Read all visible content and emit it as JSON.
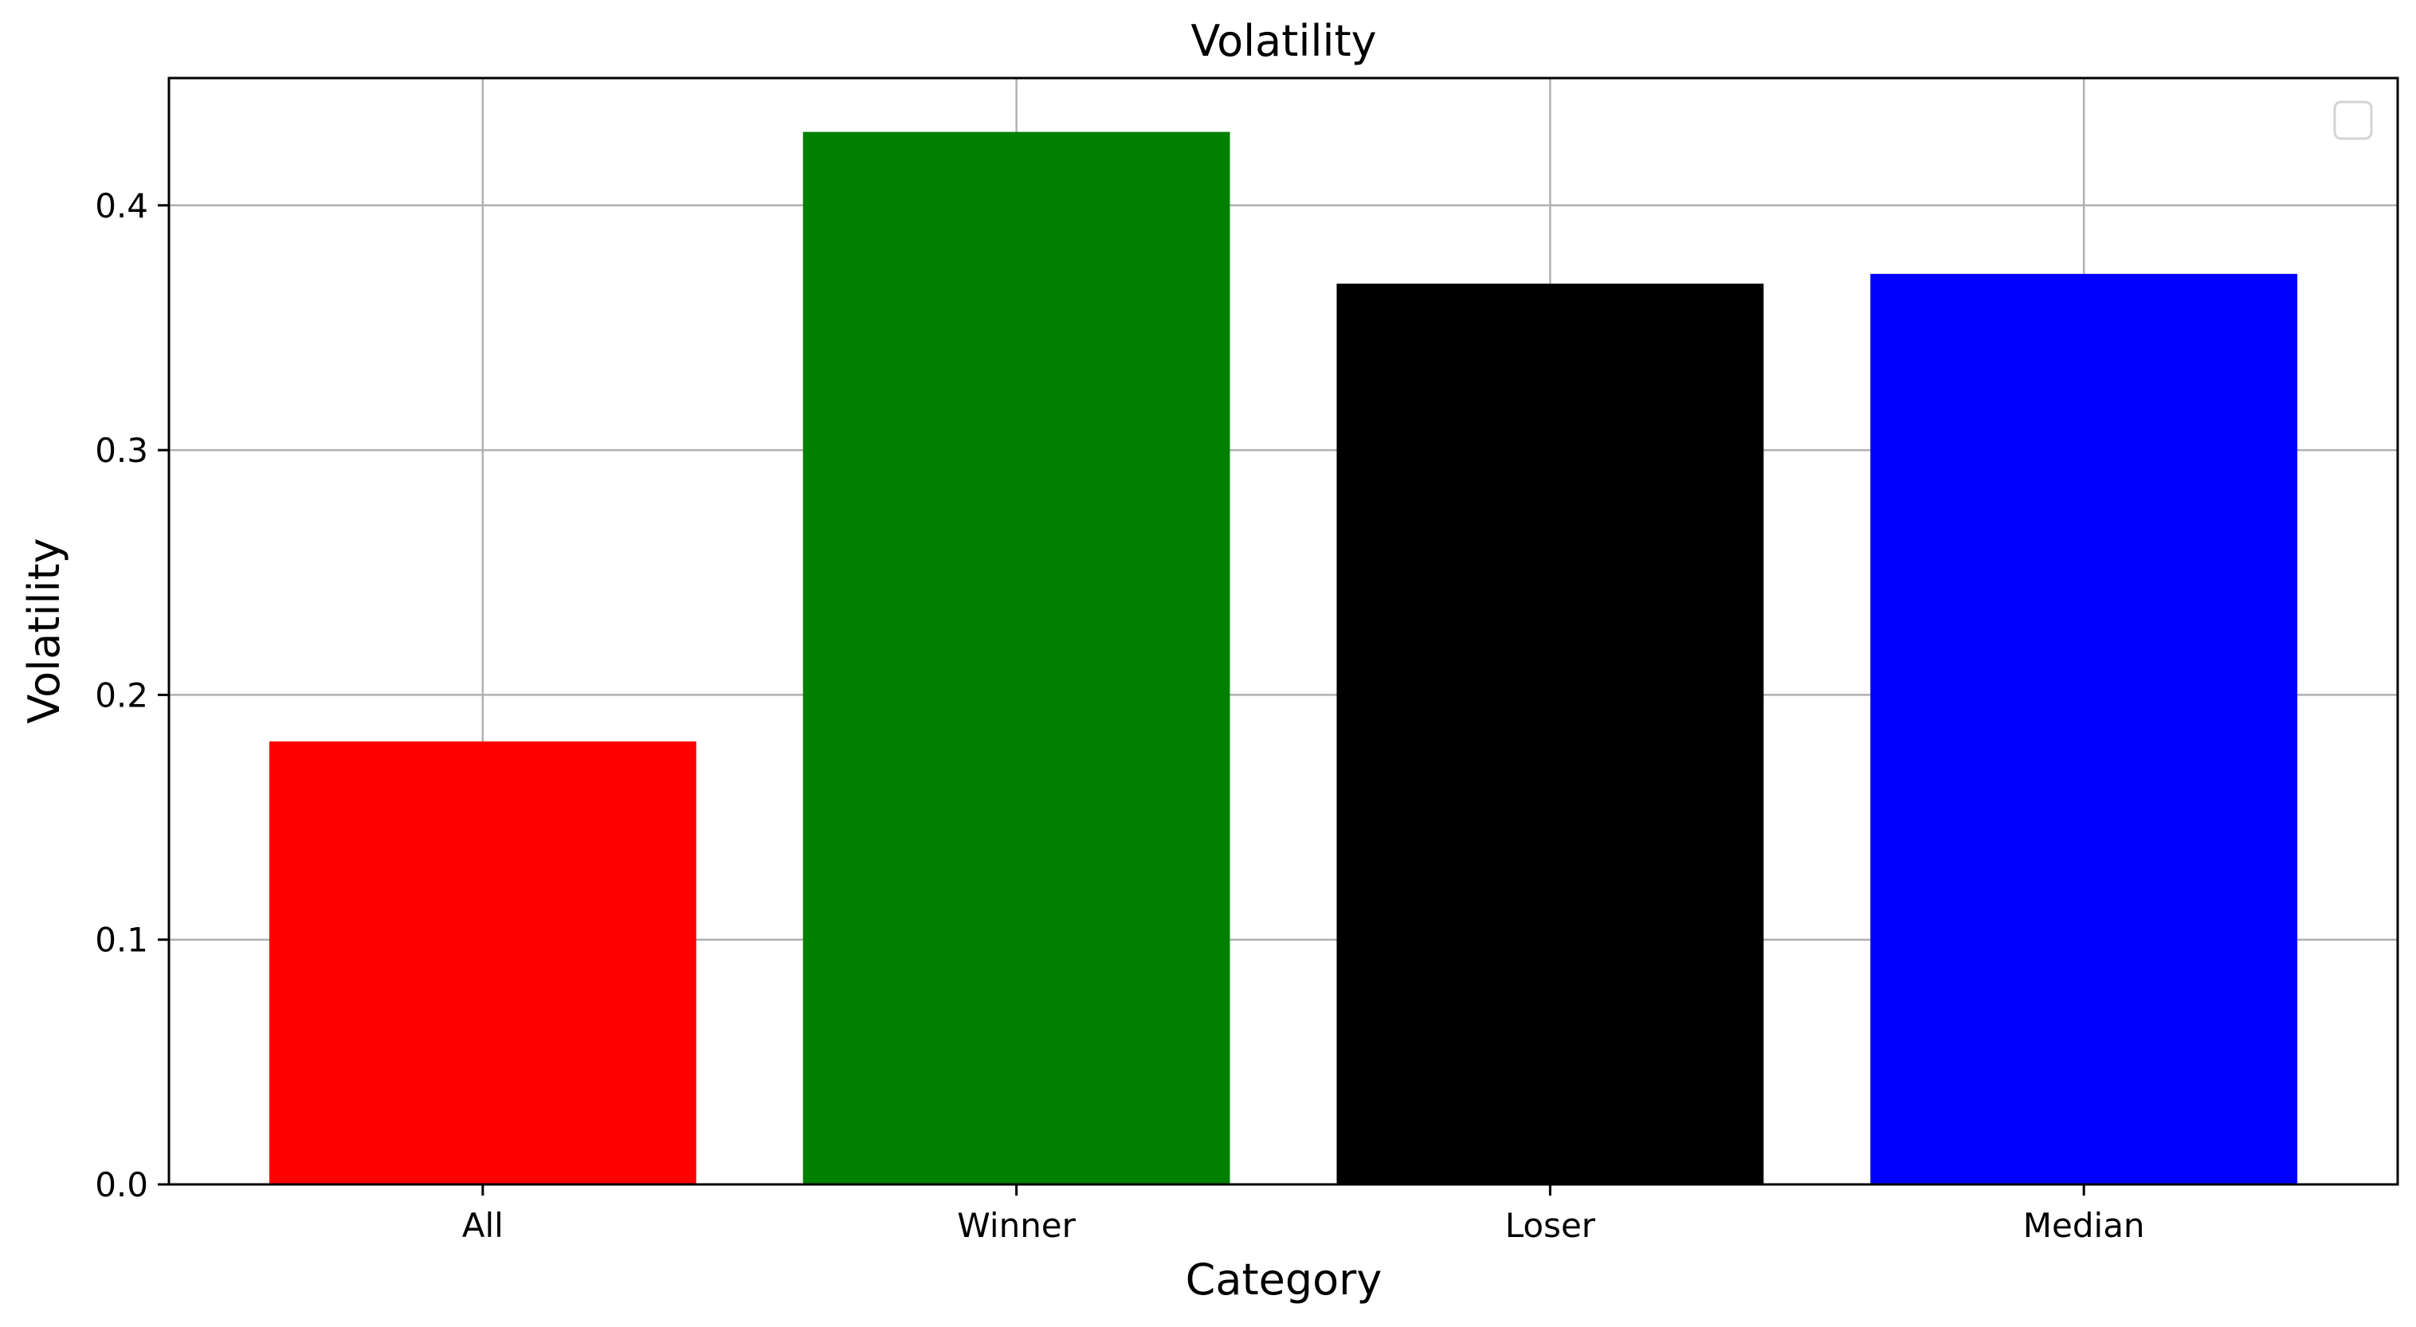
{
  "chart_data": {
    "type": "bar",
    "title": "Volatility",
    "xlabel": "Category",
    "ylabel": "Volatility",
    "categories": [
      "All",
      "Winner",
      "Loser",
      "Median"
    ],
    "values": [
      0.181,
      0.43,
      0.368,
      0.372
    ],
    "colors": [
      "#ff0000",
      "#008000",
      "#000000",
      "#0000ff"
    ],
    "ylim": [
      0,
      0.452
    ],
    "yticks": [
      0.0,
      0.1,
      0.2,
      0.3,
      0.4
    ],
    "ytick_labels": [
      "0.0",
      "0.1",
      "0.2",
      "0.3",
      "0.4"
    ],
    "grid": true,
    "legend": {
      "placement": "top-right",
      "entries": []
    }
  }
}
